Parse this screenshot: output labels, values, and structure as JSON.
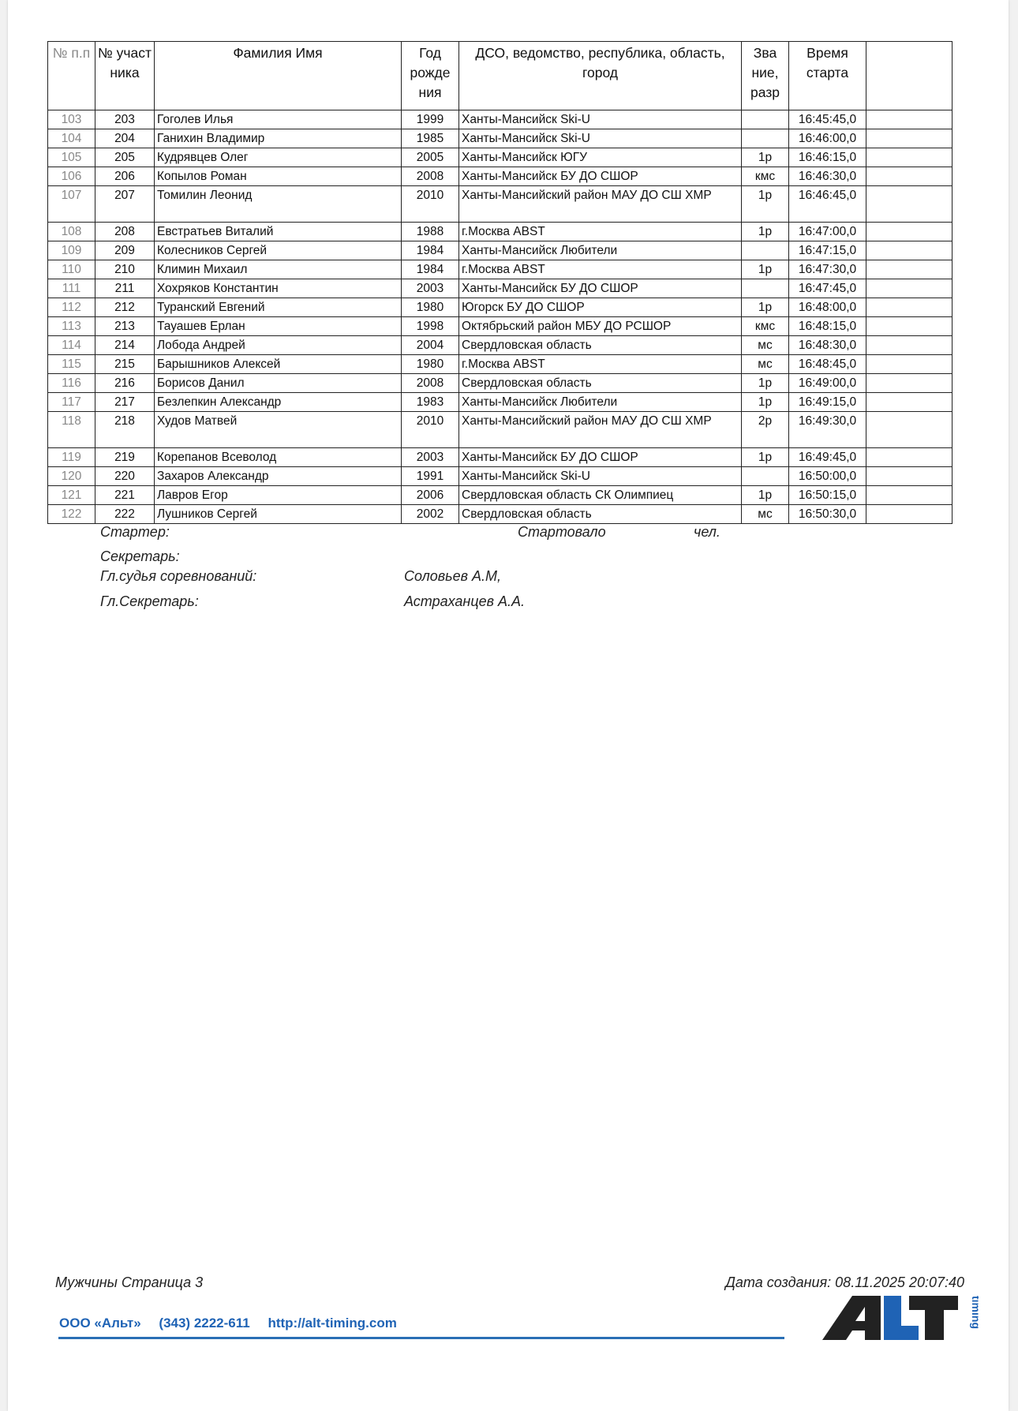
{
  "table": {
    "headers": [
      "№ п.п",
      "№ участ ника",
      "Фамилия Имя",
      "Год рожде ния",
      "ДСО, ведомство, республика, область, город",
      "Зва ние, разр",
      "Время старта",
      ""
    ],
    "rows": [
      {
        "pp": "103",
        "bib": "203",
        "name": "Гоголев Илья",
        "year": "1999",
        "club": "Ханты-Мансийск Ski-U",
        "rank": "",
        "time": "16:45:45,0"
      },
      {
        "pp": "104",
        "bib": "204",
        "name": "Ганихин Владимир",
        "year": "1985",
        "club": "Ханты-Мансийск Ski-U",
        "rank": "",
        "time": "16:46:00,0"
      },
      {
        "pp": "105",
        "bib": "205",
        "name": "Кудрявцев Олег",
        "year": "2005",
        "club": "Ханты-Мансийск ЮГУ",
        "rank": "1р",
        "time": "16:46:15,0"
      },
      {
        "pp": "106",
        "bib": "206",
        "name": "Копылов Роман",
        "year": "2008",
        "club": "Ханты-Мансийск БУ ДО СШОР",
        "rank": "кмс",
        "time": "16:46:30,0"
      },
      {
        "pp": "107",
        "bib": "207",
        "name": "Томилин Леонид",
        "year": "2010",
        "club": "Ханты-Мансийский район МАУ ДО СШ ХМР",
        "rank": "1р",
        "time": "16:46:45,0"
      },
      {
        "pp": "108",
        "bib": "208",
        "name": "Евстратьев Виталий",
        "year": "1988",
        "club": "г.Москва ABST",
        "rank": "1р",
        "time": "16:47:00,0"
      },
      {
        "pp": "109",
        "bib": "209",
        "name": "Колесников Сергей",
        "year": "1984",
        "club": "Ханты-Мансийск Любители",
        "rank": "",
        "time": "16:47:15,0"
      },
      {
        "pp": "110",
        "bib": "210",
        "name": "Климин Михаил",
        "year": "1984",
        "club": "г.Москва ABST",
        "rank": "1р",
        "time": "16:47:30,0"
      },
      {
        "pp": "111",
        "bib": "211",
        "name": "Хохряков Константин",
        "year": "2003",
        "club": "Ханты-Мансийск БУ ДО СШОР",
        "rank": "",
        "time": "16:47:45,0"
      },
      {
        "pp": "112",
        "bib": "212",
        "name": "Туранский Евгений",
        "year": "1980",
        "club": "Югорск БУ ДО СШОР",
        "rank": "1р",
        "time": "16:48:00,0"
      },
      {
        "pp": "113",
        "bib": "213",
        "name": "Тауашев Ерлан",
        "year": "1998",
        "club": "Октябрьский район МБУ ДО РСШОР",
        "rank": "кмс",
        "time": "16:48:15,0"
      },
      {
        "pp": "114",
        "bib": "214",
        "name": "Лобода Андрей",
        "year": "2004",
        "club": "Свердловская область",
        "rank": "мс",
        "time": "16:48:30,0"
      },
      {
        "pp": "115",
        "bib": "215",
        "name": "Барышников Алексей",
        "year": "1980",
        "club": "г.Москва ABST",
        "rank": "мс",
        "time": "16:48:45,0"
      },
      {
        "pp": "116",
        "bib": "216",
        "name": "Борисов Данил",
        "year": "2008",
        "club": "Свердловская область",
        "rank": "1р",
        "time": "16:49:00,0"
      },
      {
        "pp": "117",
        "bib": "217",
        "name": "Безлепкин Александр",
        "year": "1983",
        "club": "Ханты-Мансийск Любители",
        "rank": "1р",
        "time": "16:49:15,0"
      },
      {
        "pp": "118",
        "bib": "218",
        "name": "Худов Матвей",
        "year": "2010",
        "club": "Ханты-Мансийский район МАУ ДО СШ ХМР",
        "rank": "2р",
        "time": "16:49:30,0"
      },
      {
        "pp": "119",
        "bib": "219",
        "name": "Корепанов Всеволод",
        "year": "2003",
        "club": "Ханты-Мансийск БУ ДО СШОР",
        "rank": "1р",
        "time": "16:49:45,0"
      },
      {
        "pp": "120",
        "bib": "220",
        "name": "Захаров Александр",
        "year": "1991",
        "club": "Ханты-Мансийск Ski-U",
        "rank": "",
        "time": "16:50:00,0"
      },
      {
        "pp": "121",
        "bib": "221",
        "name": "Лавров Егор",
        "year": "2006",
        "club": "Свердловская область СК Олимпиец",
        "rank": "1р",
        "time": "16:50:15,0"
      },
      {
        "pp": "122",
        "bib": "222",
        "name": "Лушников Сергей",
        "year": "2002",
        "club": "Свердловская область",
        "rank": "мс",
        "time": "16:50:30,0"
      }
    ]
  },
  "signatures": {
    "starter": "Стартер:",
    "started": "Стартовало",
    "people": "чел.",
    "secretary": "Секретарь:",
    "chief_judge_label": "Гл.судья соревнований:",
    "chief_judge_name": "Соловьев А.М,",
    "chief_secretary_label": "Гл.Секретарь:",
    "chief_secretary_name": "Астраханцев А.А."
  },
  "footer": {
    "page_label": "Мужчины Страница 3",
    "created": "Дата создания: 08.11.2025 20:07:40",
    "company": "ООО «Альт»",
    "phone": "(343) 2222-611",
    "website": "http://alt-timing.com",
    "logo_text": "ALT timing",
    "brand_color": "#1f63b5"
  }
}
